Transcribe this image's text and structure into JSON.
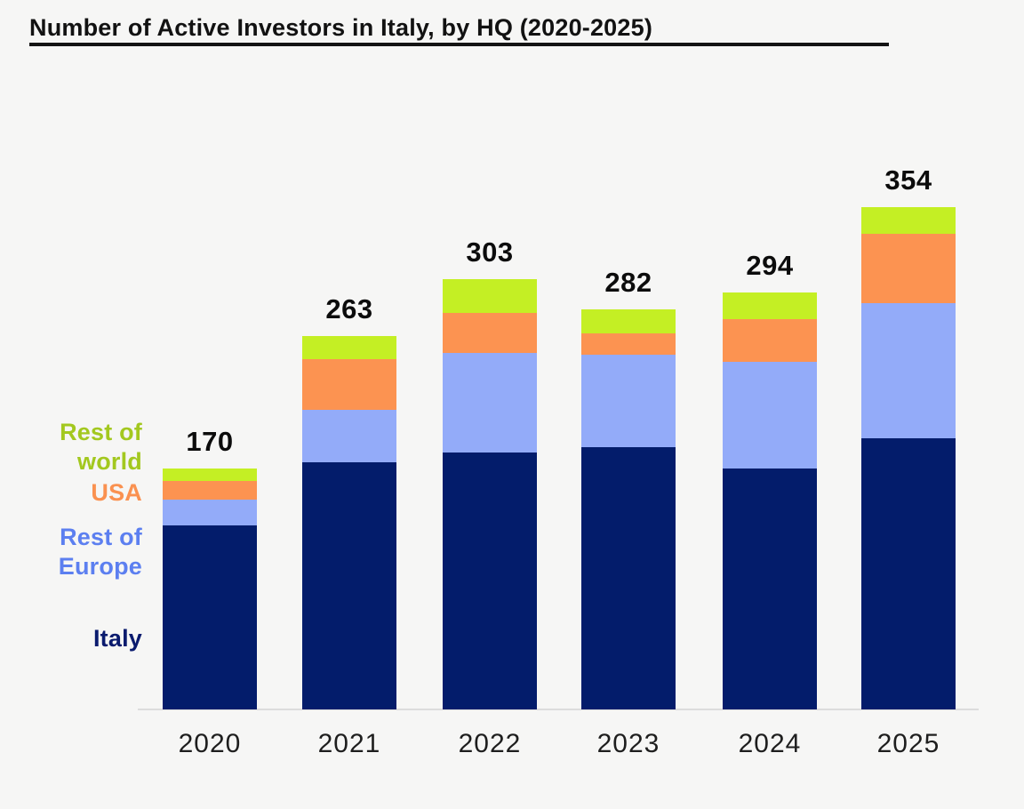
{
  "title": "Number of Active Investors in Italy, by HQ (2020-2025)",
  "colors": {
    "background": "#f6f6f5",
    "axis": "#dcdcdc",
    "title_text": "#121212",
    "italy": "#031c6b",
    "rest_of_europe": "#93abf9",
    "usa": "#fc9351",
    "rest_of_world": "#c4ef24",
    "legend_italy_text": "#0a1b6e",
    "legend_europe_text": "#5c7ff0",
    "legend_usa_text": "#fa9150",
    "legend_world_text": "#a3c81f"
  },
  "legend": {
    "position": "left",
    "items": [
      {
        "key": "rest_of_world",
        "label": "Rest of world"
      },
      {
        "key": "usa",
        "label": "USA"
      },
      {
        "key": "rest_of_europe",
        "label": "Rest of Europe"
      },
      {
        "key": "italy",
        "label": "Italy"
      }
    ]
  },
  "chart_data": {
    "type": "bar",
    "stacked": true,
    "title": "Number of Active Investors in Italy, by HQ (2020-2025)",
    "categories": [
      "2020",
      "2021",
      "2022",
      "2023",
      "2024",
      "2025"
    ],
    "series": [
      {
        "name": "Italy",
        "color_key": "italy",
        "values": [
          130,
          174,
          181,
          185,
          170,
          191
        ]
      },
      {
        "name": "Rest of Europe",
        "color_key": "rest_of_europe",
        "values": [
          18,
          37,
          70,
          65,
          75,
          95
        ]
      },
      {
        "name": "USA",
        "color_key": "usa",
        "values": [
          13,
          36,
          28,
          15,
          30,
          49
        ]
      },
      {
        "name": "Rest of world",
        "color_key": "rest_of_world",
        "values": [
          9,
          16,
          24,
          17,
          19,
          19
        ]
      }
    ],
    "totals": [
      170,
      263,
      303,
      282,
      294,
      354
    ],
    "xlabel": "",
    "ylabel": "",
    "ylim": [
      0,
      380
    ],
    "grid": false,
    "legend_position": "left",
    "data_labels": "total above each bar"
  }
}
